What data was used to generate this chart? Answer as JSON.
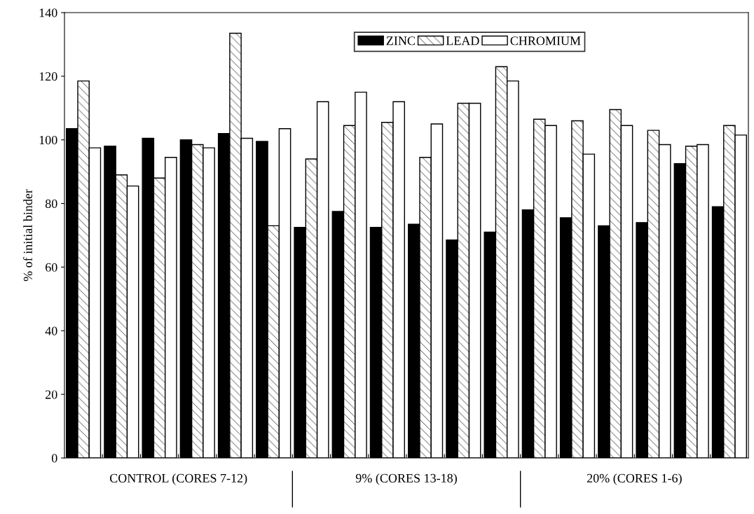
{
  "chart_data": {
    "type": "bar",
    "ylabel": "% of initial binder",
    "categories": [
      null,
      null,
      null,
      null,
      null,
      null,
      null,
      null,
      null,
      null,
      null,
      null,
      null,
      null,
      null,
      null,
      null,
      null
    ],
    "series": [
      {
        "name": "ZINC",
        "color": "#000000",
        "values": [
          103.5,
          98,
          100.5,
          100,
          102,
          99.5,
          72.5,
          77.5,
          72.5,
          73.5,
          68.5,
          71,
          78,
          75.5,
          73,
          74,
          92.5,
          79
        ]
      },
      {
        "name": "LEAD",
        "color": "#000000",
        "values": [
          118.5,
          89,
          88,
          98.5,
          133.5,
          73,
          94,
          104.5,
          105.5,
          94.5,
          111.5,
          123,
          106.5,
          106,
          109.5,
          103,
          98,
          104.5
        ]
      },
      {
        "name": "CHROMIUM",
        "color": "#ffffff",
        "values": [
          97.5,
          85.5,
          94.5,
          97.5,
          100.5,
          103.5,
          112,
          115,
          112,
          105,
          111.5,
          118.5,
          104.5,
          95.5,
          104.5,
          98.5,
          98.5,
          101.5
        ]
      }
    ],
    "ylim": [
      0,
      140
    ],
    "yticks": [
      0,
      20,
      40,
      60,
      80,
      100,
      120,
      140
    ],
    "legend": "top right",
    "grid": false,
    "annotations": [
      "CONTROL (CORES 7-12)",
      "9% (CORES 13-18)",
      "20% (CORES 1-6)"
    ]
  }
}
